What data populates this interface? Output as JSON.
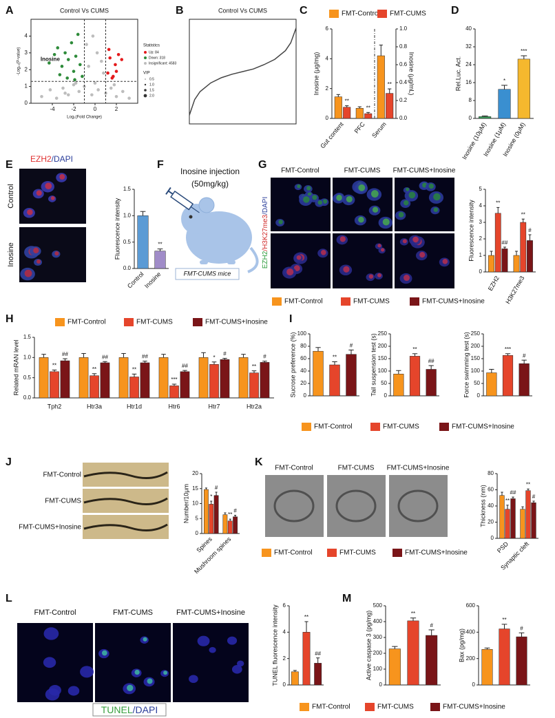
{
  "letters": [
    "A",
    "B",
    "C",
    "D",
    "E",
    "F",
    "G",
    "H",
    "I",
    "J",
    "K",
    "L",
    "M"
  ],
  "groups": [
    {
      "name": "FMT-Control",
      "color": "#f7941d"
    },
    {
      "name": "FMT-CUMS",
      "color": "#e5452b"
    },
    {
      "name": "FMT-CUMS+Inosine",
      "color": "#7a1518"
    }
  ],
  "panel_e": {
    "stain": [
      {
        "text": "EZH2",
        "color": "#e03030"
      },
      {
        "text": "/DAPI",
        "color": "#2a3d9a"
      }
    ],
    "rows": [
      "Control",
      "Inosine"
    ]
  },
  "panel_f": {
    "title": "Inosine injection",
    "dose": "(50mg/kg)",
    "model": "FMT-CUMS mice"
  },
  "panel_g": {
    "stain": [
      {
        "text": "EZH2",
        "color": "#2a9a3a"
      },
      {
        "text": "/H3K27me3",
        "color": "#d02a2a"
      },
      {
        "text": "/DAPI",
        "color": "#2a3d9a"
      }
    ]
  },
  "panel_l": {
    "stain": [
      {
        "text": "TUNEL",
        "color": "#3aa040"
      },
      {
        "text": "/DAPI",
        "color": "#2a3d9a"
      }
    ]
  },
  "chart_data": [
    {
      "type": "scatter",
      "title": "Control Vs CUMS",
      "xlabel": "Log₂(Fold Change)",
      "ylabel": "-Log₁₀(P-value)",
      "xlim": [
        -6,
        4
      ],
      "ylim": [
        0,
        5
      ],
      "xticks": [
        -4,
        -2,
        0,
        2
      ],
      "yticks": [
        0,
        1,
        2,
        3,
        4
      ],
      "thresholds": {
        "x": [
          -1,
          1
        ],
        "y": 1.3
      },
      "annotation": "Inosine",
      "legend_title": "Statistics",
      "series": [
        {
          "name": "Up: 84",
          "color": "#e41a1c",
          "x": [
            1.2,
            1.4,
            1.6,
            1.9,
            2.2,
            2.5,
            1.3,
            1.7,
            2.0
          ],
          "y": [
            1.8,
            2.7,
            1.5,
            2.3,
            2.9,
            2.6,
            3.2,
            1.6,
            1.9
          ]
        },
        {
          "name": "Down: 318",
          "color": "#2e8b3a",
          "x": [
            -4.3,
            -3.8,
            -3.5,
            -3.1,
            -2.8,
            -2.5,
            -2.2,
            -2.0,
            -1.8,
            -1.6,
            -1.4,
            -1.2,
            -3.3,
            -2.6,
            -1.9
          ],
          "y": [
            2.4,
            2.9,
            3.3,
            2.2,
            3.0,
            2.6,
            3.6,
            1.9,
            2.8,
            4.1,
            2.3,
            1.6,
            1.7,
            1.5,
            1.4
          ]
        },
        {
          "name": "Insignificant: 4583",
          "color": "#bdbdbd",
          "x": [
            -5,
            -4.2,
            -3.6,
            -3,
            -2.5,
            -2,
            -1.5,
            -1,
            -0.6,
            -0.3,
            0,
            0.3,
            0.6,
            1,
            1.5,
            2,
            2.6,
            3.2,
            -0.8,
            0.8,
            -1.8,
            1.8,
            -2.8,
            -0.2,
            0.2
          ],
          "y": [
            0.4,
            0.8,
            0.3,
            0.9,
            0.5,
            1.1,
            0.7,
            1.0,
            2.2,
            0.5,
            1.2,
            0.8,
            2.5,
            0.6,
            0.9,
            0.4,
            0.7,
            0.3,
            3.5,
            1.8,
            1.2,
            1.1,
            0.6,
            4.0,
            3.0
          ]
        }
      ],
      "vip": {
        "title": "VIP",
        "sizes": [
          0.5,
          {
            "value": 1,
            "label": "1.0"
          },
          1.5,
          {
            "value": 2,
            "label": "2.0"
          }
        ]
      }
    },
    {
      "type": "line",
      "title": "Control Vs CUMS",
      "color": "#444444",
      "xlim": [
        0,
        5000
      ],
      "ylim": [
        -6,
        6
      ],
      "x": [
        0,
        250,
        500,
        1000,
        1500,
        2000,
        2500,
        3000,
        3500,
        4000,
        4500,
        4750,
        5000
      ],
      "values": [
        -5,
        -3.2,
        -2.3,
        -1.3,
        -0.7,
        -0.3,
        0,
        0.3,
        0.8,
        1.4,
        2.4,
        3.3,
        5
      ]
    },
    {
      "type": "bar",
      "categories": [
        "Gut content",
        "PFC",
        "Serum"
      ],
      "ylabel": "Inosine (μg/mg)",
      "y2label": "Inosine (μg/mL)",
      "ylim": [
        0,
        6
      ],
      "yticks": [
        0,
        2,
        4,
        6
      ],
      "y2lim": [
        0,
        1
      ],
      "y2ticks": [
        {
          "value": 0,
          "label": "0.0"
        },
        0.2,
        0.4,
        0.6,
        0.8,
        {
          "value": 1,
          "label": "1.0"
        }
      ],
      "axis_by_category": [
        "y",
        "y",
        "y2"
      ],
      "series": [
        {
          "values": [
            1.45,
            0.68,
            0.7
          ],
          "errors": [
            0.15,
            0.1,
            0.12
          ]
        },
        {
          "values": [
            0.75,
            0.32,
            0.28
          ],
          "errors": [
            0.1,
            0.08,
            0.05
          ],
          "sig": [
            "**",
            "**",
            "**"
          ]
        }
      ]
    },
    {
      "type": "bar",
      "categories": [
        "Inosine (10μM)",
        "Inosine (1μM)",
        "Inosine (0μM)"
      ],
      "colors": [
        "#3a9a5a",
        "#3a8fd0",
        "#f5b82e"
      ],
      "values": [
        0.8,
        13,
        26.5
      ],
      "errors": [
        0.3,
        1.8,
        1.5
      ],
      "sig": [
        null,
        "*",
        "***"
      ],
      "ylabel": "Rel.Luc. Act.",
      "ylim": [
        0,
        40
      ],
      "yticks": [
        0,
        8,
        16,
        24,
        32,
        40
      ]
    },
    {
      "type": "bar",
      "categories": [
        "Control",
        "Inosine"
      ],
      "colors": [
        "#5b9bd5",
        "#a08cc8"
      ],
      "values": [
        1.0,
        0.33
      ],
      "errors": [
        0.08,
        0.04
      ],
      "sig": [
        null,
        "**"
      ],
      "ylabel": "Fluorescence intensity",
      "ylim": [
        0,
        1.5
      ],
      "yticks": [
        {
          "value": 0,
          "label": "0.0"
        },
        0.5,
        {
          "value": 1,
          "label": "1.0"
        },
        1.5
      ]
    },
    {
      "type": "bar",
      "categories": [
        "EZH2",
        "H3K27me3"
      ],
      "ylabel": "Fluorescence intensity",
      "ylim": [
        0,
        5
      ],
      "yticks": [
        0,
        1,
        2,
        3,
        4,
        5
      ],
      "series": [
        {
          "values": [
            1,
            1
          ],
          "errors": [
            0.25,
            0.25
          ]
        },
        {
          "values": [
            3.55,
            3.0
          ],
          "errors": [
            0.35,
            0.2
          ],
          "sig": [
            "**",
            "**"
          ]
        },
        {
          "values": [
            1.4,
            1.9
          ],
          "errors": [
            0.1,
            0.35
          ],
          "sig": [
            "##",
            "#"
          ]
        }
      ]
    },
    {
      "type": "bar",
      "categories": [
        "Tph2",
        "Htr3a",
        "Htr1d",
        "Htr6",
        "Htr7",
        "Htr2a"
      ],
      "ylabel": "Related mRAN level",
      "ylim": [
        0,
        1.5
      ],
      "yticks": [
        {
          "value": 0,
          "label": "0.0"
        },
        0.5,
        {
          "value": 1,
          "label": "1.0"
        },
        1.5
      ],
      "series": [
        {
          "values": [
            1,
            1,
            1,
            1,
            1,
            1
          ],
          "errors": [
            0.08,
            0.1,
            0.1,
            0.08,
            0.12,
            0.08
          ]
        },
        {
          "values": [
            0.65,
            0.55,
            0.52,
            0.3,
            0.83,
            0.62
          ],
          "errors": [
            0.04,
            0.05,
            0.07,
            0.04,
            0.06,
            0.05
          ],
          "sig": [
            "**",
            "**",
            "**",
            "***",
            "*",
            "**"
          ]
        },
        {
          "values": [
            0.92,
            0.87,
            0.87,
            0.65,
            0.95,
            0.88
          ],
          "errors": [
            0.05,
            0.03,
            0.04,
            0.03,
            0.03,
            0.03
          ],
          "sig": [
            "##",
            "##",
            "##",
            "##",
            "#",
            "#"
          ]
        }
      ]
    },
    {
      "type": "bar",
      "ylabel": "Sucrose preference (%)",
      "ylim": [
        0,
        100
      ],
      "yticks": [
        0,
        20,
        40,
        60,
        80,
        100
      ],
      "values": [
        72,
        50,
        67
      ],
      "errors": [
        6,
        5,
        7
      ],
      "sig": [
        null,
        "**",
        "#"
      ]
    },
    {
      "type": "bar",
      "ylabel": "Tail suspension test (s)",
      "ylim": [
        0,
        250
      ],
      "yticks": [
        0,
        50,
        100,
        150,
        200,
        250
      ],
      "values": [
        88,
        160,
        107
      ],
      "errors": [
        14,
        10,
        15
      ],
      "sig": [
        null,
        "**",
        "##"
      ]
    },
    {
      "type": "bar",
      "ylabel": "Force swimming test (s)",
      "ylim": [
        0,
        250
      ],
      "yticks": [
        0,
        50,
        100,
        150,
        200,
        250
      ],
      "values": [
        93,
        163,
        130
      ],
      "errors": [
        14,
        7,
        14
      ],
      "sig": [
        null,
        "***",
        "#"
      ]
    },
    {
      "type": "bar",
      "categories": [
        "Spines",
        "Mushroom spines"
      ],
      "ylabel": "Number/10μm",
      "ylim": [
        0,
        20
      ],
      "yticks": [
        0,
        5,
        10,
        15,
        20
      ],
      "series": [
        {
          "values": [
            14.7,
            6.3
          ],
          "errors": [
            0.5,
            0.6
          ]
        },
        {
          "values": [
            9.8,
            4.2
          ],
          "errors": [
            1.0,
            0.6
          ],
          "sig": [
            "*",
            "**"
          ]
        },
        {
          "values": [
            12.7,
            5.6
          ],
          "errors": [
            1.1,
            0.5
          ],
          "sig": [
            "#",
            "#"
          ]
        }
      ]
    },
    {
      "type": "bar",
      "categories": [
        "PSD",
        "Synaptic cleft"
      ],
      "ylabel": "Thickness (nm)",
      "ylim": [
        0,
        80
      ],
      "yticks": [
        0,
        20,
        40,
        60,
        80
      ],
      "series": [
        {
          "values": [
            53,
            36
          ],
          "errors": [
            4,
            3
          ]
        },
        {
          "values": [
            36,
            59
          ],
          "errors": [
            5,
            2
          ],
          "sig": [
            "**",
            "**"
          ]
        },
        {
          "values": [
            49,
            44
          ],
          "errors": [
            2,
            2
          ],
          "sig": [
            "##",
            "#"
          ]
        }
      ]
    },
    {
      "type": "bar",
      "ylabel": "TUNEL fluorescence intensity",
      "ylim": [
        0,
        6
      ],
      "yticks": [
        0,
        2,
        4,
        6
      ],
      "values": [
        1.0,
        4.0,
        1.65
      ],
      "errors": [
        0.1,
        0.8,
        0.4
      ],
      "sig": [
        null,
        "**",
        "##"
      ]
    },
    {
      "type": "bar",
      "ylabel": "Active caspase 3 (pg/mg)",
      "ylim": [
        0,
        500
      ],
      "yticks": [
        0,
        100,
        200,
        300,
        400,
        500
      ],
      "values": [
        228,
        405,
        313
      ],
      "errors": [
        15,
        18,
        35
      ],
      "sig": [
        null,
        "**",
        "#"
      ]
    },
    {
      "type": "bar",
      "ylabel": "Bax (pg/mg)",
      "ylim": [
        0,
        600
      ],
      "yticks": [
        0,
        200,
        400,
        600
      ],
      "values": [
        270,
        425,
        365
      ],
      "errors": [
        10,
        35,
        30
      ],
      "sig": [
        null,
        "**",
        "#"
      ]
    }
  ]
}
